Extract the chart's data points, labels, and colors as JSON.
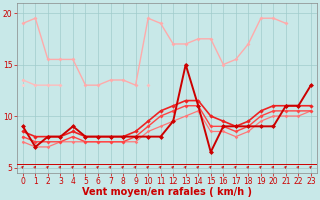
{
  "x": [
    0,
    1,
    2,
    3,
    4,
    5,
    6,
    7,
    8,
    9,
    10,
    11,
    12,
    13,
    14,
    15,
    16,
    17,
    18,
    19,
    20,
    21,
    22,
    23
  ],
  "bg": "#c8e8e8",
  "grid_color": "#a0cccc",
  "xlabel": "Vent moyen/en rafales ( km/h )",
  "yticks": [
    5,
    10,
    15,
    20
  ],
  "ylim": [
    4.5,
    21.0
  ],
  "xlim": [
    -0.5,
    23.5
  ],
  "lines": [
    {
      "y": [
        19.0,
        19.5,
        15.5,
        15.5,
        15.5,
        13.0,
        13.0,
        13.5,
        13.5,
        13.0,
        19.5,
        19.0,
        17.0,
        17.0,
        17.5,
        17.5,
        15.0,
        15.5,
        17.0,
        19.5,
        19.5,
        19.0,
        null,
        null
      ],
      "color": "#ffaaaa",
      "lw": 1.0,
      "ms": 2.0,
      "zorder": 3
    },
    {
      "y": [
        13.5,
        13.0,
        13.0,
        13.0,
        null,
        null,
        null,
        null,
        null,
        null,
        13.0,
        null,
        null,
        null,
        null,
        null,
        null,
        null,
        null,
        null,
        null,
        null,
        null,
        null
      ],
      "color": "#ffbbbb",
      "lw": 1.0,
      "ms": 2.0,
      "zorder": 3
    },
    {
      "y": [
        13.0,
        null,
        null,
        null,
        null,
        null,
        null,
        null,
        null,
        null,
        null,
        null,
        null,
        null,
        null,
        null,
        null,
        null,
        null,
        null,
        null,
        null,
        null,
        null
      ],
      "color": "#ffcccc",
      "lw": 1.0,
      "ms": 1.8,
      "zorder": 3
    },
    {
      "y": [
        9.0,
        7.0,
        8.0,
        8.0,
        9.0,
        8.0,
        8.0,
        8.0,
        8.0,
        8.0,
        8.0,
        8.0,
        9.5,
        15.0,
        11.0,
        6.5,
        9.0,
        9.0,
        9.0,
        9.0,
        9.0,
        11.0,
        11.0,
        13.0
      ],
      "color": "#cc0000",
      "lw": 1.4,
      "ms": 2.5,
      "zorder": 5
    },
    {
      "y": [
        8.5,
        8.0,
        8.0,
        8.0,
        8.5,
        8.0,
        8.0,
        8.0,
        8.0,
        8.5,
        9.5,
        10.5,
        11.0,
        11.5,
        11.5,
        10.0,
        9.5,
        9.0,
        9.5,
        10.5,
        11.0,
        11.0,
        11.0,
        11.0
      ],
      "color": "#ee2222",
      "lw": 1.2,
      "ms": 2.2,
      "zorder": 4
    },
    {
      "y": [
        8.0,
        7.5,
        7.5,
        7.5,
        8.0,
        7.5,
        7.5,
        7.5,
        7.5,
        8.0,
        9.0,
        10.0,
        10.5,
        11.0,
        11.0,
        9.0,
        9.0,
        8.5,
        9.0,
        10.0,
        10.5,
        10.5,
        10.5,
        10.5
      ],
      "color": "#ff4444",
      "lw": 1.0,
      "ms": 2.0,
      "zorder": 4
    },
    {
      "y": [
        7.5,
        7.0,
        7.0,
        7.5,
        7.5,
        7.5,
        7.5,
        7.5,
        7.5,
        7.5,
        8.5,
        9.0,
        9.5,
        10.0,
        10.5,
        8.5,
        8.5,
        8.0,
        8.5,
        9.5,
        10.0,
        10.0,
        10.0,
        10.5
      ],
      "color": "#ff7777",
      "lw": 0.9,
      "ms": 1.8,
      "zorder": 3
    }
  ],
  "label_fontsize": 7,
  "tick_fontsize": 5.5
}
